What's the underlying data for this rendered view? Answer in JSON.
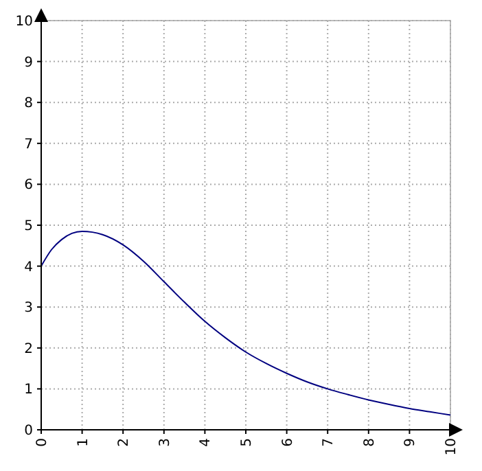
{
  "chart_data": {
    "type": "line",
    "xlim": [
      0,
      10
    ],
    "ylim": [
      0,
      10
    ],
    "xticks": [
      0,
      1,
      2,
      3,
      4,
      5,
      6,
      7,
      8,
      9,
      10
    ],
    "yticks": [
      0,
      1,
      2,
      3,
      4,
      5,
      6,
      7,
      8,
      9,
      10
    ],
    "grid": true,
    "line_style": "solid",
    "series": [
      {
        "color": "#000080",
        "x": [
          0,
          0.25,
          0.5,
          0.75,
          1,
          1.25,
          1.5,
          2,
          2.5,
          3,
          3.5,
          4,
          4.5,
          5,
          5.5,
          6,
          6.5,
          7,
          7.5,
          8,
          8.5,
          9,
          9.5,
          10
        ],
        "values": [
          4,
          4.4,
          4.65,
          4.8,
          4.85,
          4.83,
          4.77,
          4.52,
          4.12,
          3.62,
          3.12,
          2.65,
          2.25,
          1.9,
          1.62,
          1.38,
          1.17,
          1,
          0.86,
          0.73,
          0.62,
          0.52,
          0.44,
          0.36
        ]
      }
    ]
  }
}
